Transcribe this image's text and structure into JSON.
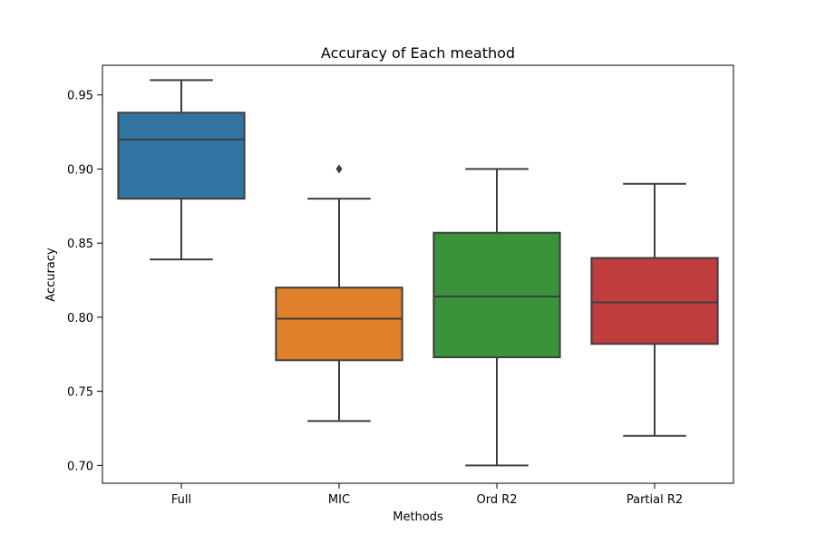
{
  "chart_data": {
    "type": "box",
    "title": "Accuracy of Each meathod",
    "xlabel": "Methods",
    "ylabel": "Accuracy",
    "ylim": [
      0.688,
      0.97
    ],
    "yticks": [
      0.7,
      0.75,
      0.8,
      0.85,
      0.9,
      0.95
    ],
    "ytick_labels": [
      "0.70",
      "0.75",
      "0.80",
      "0.85",
      "0.90",
      "0.95"
    ],
    "grid": false,
    "categories": [
      "Full",
      "MIC",
      "Ord R2",
      "Partial R2"
    ],
    "series": [
      {
        "category": "Full",
        "whisker_low": 0.839,
        "q1": 0.88,
        "median": 0.92,
        "q3": 0.938,
        "whisker_high": 0.96,
        "outliers": [],
        "color": "#3274a1"
      },
      {
        "category": "MIC",
        "whisker_low": 0.73,
        "q1": 0.771,
        "median": 0.799,
        "q3": 0.82,
        "whisker_high": 0.88,
        "outliers": [
          0.9
        ],
        "color": "#e1812c"
      },
      {
        "category": "Ord R2",
        "whisker_low": 0.7,
        "q1": 0.773,
        "median": 0.814,
        "q3": 0.857,
        "whisker_high": 0.9,
        "outliers": [],
        "color": "#3a923a"
      },
      {
        "category": "Partial R2",
        "whisker_low": 0.72,
        "q1": 0.782,
        "median": 0.81,
        "q3": 0.84,
        "whisker_high": 0.89,
        "outliers": [],
        "color": "#c03d3e"
      }
    ]
  }
}
